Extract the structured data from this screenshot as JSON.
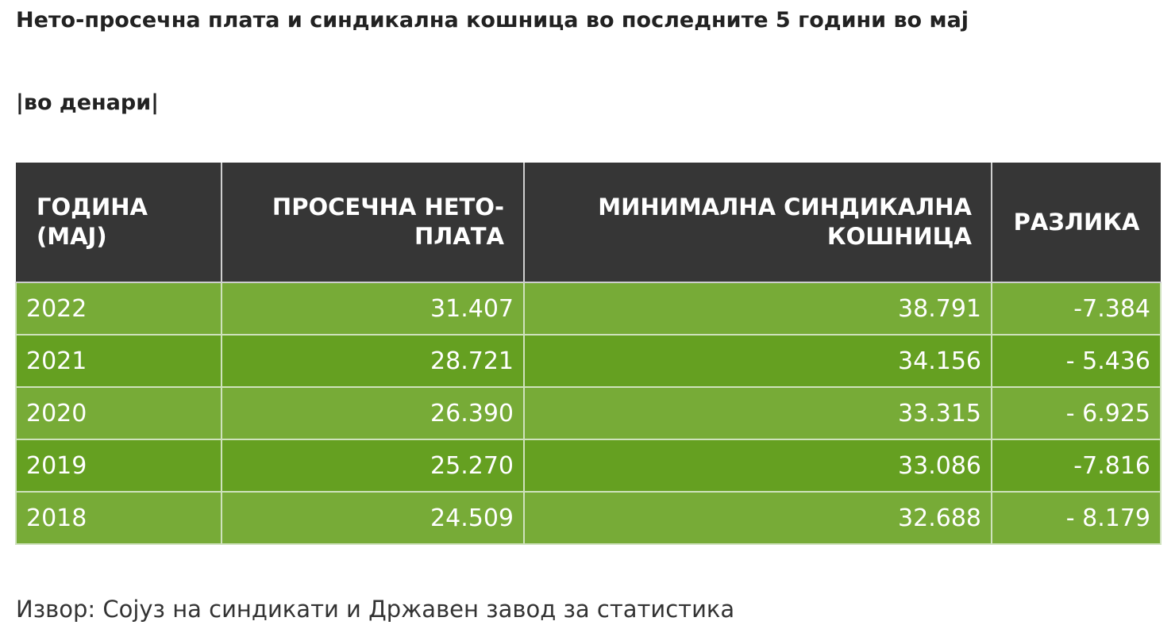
{
  "title": "Нето-просечна плата и синдикална кошница во последните 5 години во мај",
  "subtitle": "|во денари|",
  "table": {
    "headers": [
      {
        "line1": "ГОДИНА",
        "line2": "(МАЈ)"
      },
      {
        "line1": "ПРОСЕЧНА НЕТО-",
        "line2": "ПЛАТА"
      },
      {
        "line1": "МИНИМАЛНА СИНДИКАЛНА",
        "line2": "КОШНИЦА"
      },
      {
        "line1": "РАЗЛИКА",
        "line2": ""
      }
    ],
    "rows": [
      {
        "year": "2022",
        "net_salary": "31.407",
        "basket": "38.791",
        "difference": "-7.384"
      },
      {
        "year": "2021",
        "net_salary": "28.721",
        "basket": "34.156",
        "difference": "- 5.436"
      },
      {
        "year": "2020",
        "net_salary": "26.390",
        "basket": "33.315",
        "difference": "- 6.925"
      },
      {
        "year": "2019",
        "net_salary": "25.270",
        "basket": "33.086",
        "difference": "-7.816"
      },
      {
        "year": "2018",
        "net_salary": "24.509",
        "basket": "32.688",
        "difference": "- 8.179"
      }
    ]
  },
  "source": "Извор: Сојуз на синдикати и Државен завод за статистика",
  "colors": {
    "header_bg": "#363636",
    "row_light": "#77ab37",
    "row_dark": "#65a021"
  }
}
